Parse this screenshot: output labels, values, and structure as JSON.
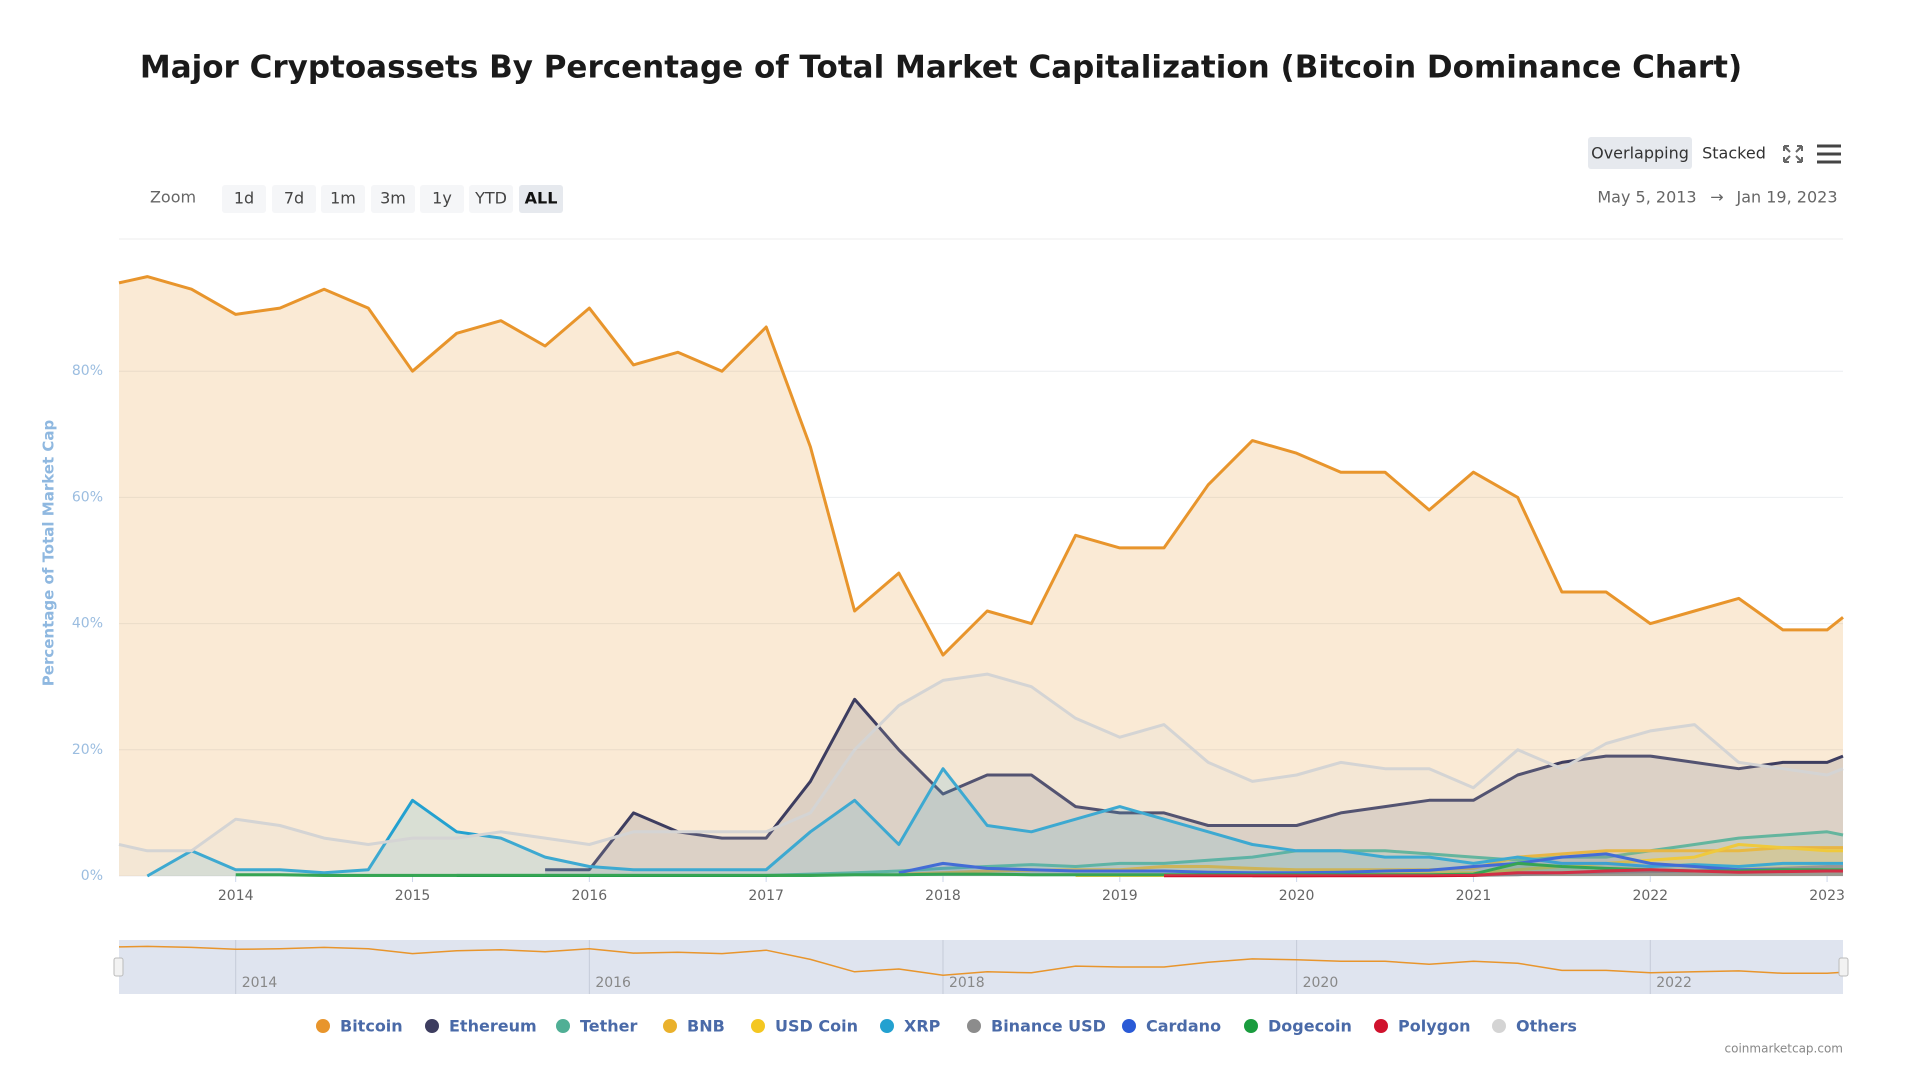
{
  "header": {
    "title": "Major Cryptoassets By Percentage of Total Market Capitalization (Bitcoin Dominance Chart)"
  },
  "toolbar": {
    "zoom_label": "Zoom",
    "zoom_buttons": [
      "1d",
      "7d",
      "1m",
      "3m",
      "1y",
      "YTD",
      "ALL"
    ],
    "active_zoom": "ALL",
    "modes": [
      "Overlapping",
      "Stacked"
    ],
    "active_mode": "Overlapping",
    "range_from": "May 5, 2013",
    "range_to": "Jan 19, 2023"
  },
  "chart_data": {
    "type": "area",
    "y_label": "Percentage of Total Market Cap",
    "x": [
      2013.34,
      2013.5,
      2013.75,
      2014.0,
      2014.25,
      2014.5,
      2014.75,
      2015.0,
      2015.25,
      2015.5,
      2015.75,
      2016.0,
      2016.25,
      2016.5,
      2016.75,
      2017.0,
      2017.25,
      2017.5,
      2017.75,
      2018.0,
      2018.25,
      2018.5,
      2018.75,
      2019.0,
      2019.25,
      2019.5,
      2019.75,
      2020.0,
      2020.25,
      2020.5,
      2020.75,
      2021.0,
      2021.25,
      2021.5,
      2021.75,
      2022.0,
      2022.25,
      2022.5,
      2022.75,
      2023.0,
      2023.09
    ],
    "xlim": [
      2013.34,
      2023.09
    ],
    "xticks": [
      2014,
      2015,
      2016,
      2017,
      2018,
      2019,
      2020,
      2021,
      2022,
      2023
    ],
    "ylim": [
      0,
      100
    ],
    "yticks": [
      {
        "value": 0,
        "label": "0%"
      },
      {
        "value": 20,
        "label": "20%"
      },
      {
        "value": 40,
        "label": "40%"
      },
      {
        "value": 60,
        "label": "60%"
      },
      {
        "value": 80,
        "label": "80%"
      }
    ],
    "grid": true,
    "navigator_xticks": [
      2014,
      2016,
      2018,
      2020,
      2022
    ],
    "series": [
      {
        "name": "Bitcoin",
        "color": "#e8952c",
        "values": [
          94,
          95,
          93,
          89,
          90,
          93,
          90,
          80,
          86,
          88,
          84,
          90,
          81,
          83,
          80,
          87,
          68,
          42,
          48,
          35,
          42,
          40,
          54,
          52,
          52,
          62,
          69,
          67,
          64,
          64,
          58,
          64,
          60,
          45,
          45,
          40,
          42,
          44,
          39,
          39,
          41
        ]
      },
      {
        "name": "Ethereum",
        "color": "#3d3d60",
        "values": [
          null,
          null,
          null,
          null,
          null,
          null,
          null,
          null,
          null,
          null,
          1,
          1,
          10,
          7,
          6,
          6,
          15,
          28,
          20,
          13,
          16,
          16,
          11,
          10,
          10,
          8,
          8,
          8,
          10,
          11,
          12,
          12,
          16,
          18,
          19,
          19,
          18,
          17,
          18,
          18,
          19
        ]
      },
      {
        "name": "Tether",
        "color": "#50af95",
        "values": [
          null,
          null,
          null,
          null,
          null,
          null,
          null,
          null,
          0.1,
          0.1,
          0.1,
          0.1,
          0.1,
          0.1,
          0.1,
          0.1,
          0.3,
          0.5,
          0.8,
          1.2,
          1.5,
          1.8,
          1.5,
          2,
          2,
          2.5,
          3,
          4,
          4,
          4,
          3.5,
          3,
          2.5,
          3,
          3,
          4,
          5,
          6,
          6.5,
          7,
          6.5
        ]
      },
      {
        "name": "BNB",
        "color": "#eab12c",
        "values": [
          null,
          null,
          null,
          null,
          null,
          null,
          null,
          null,
          null,
          null,
          null,
          null,
          null,
          null,
          null,
          null,
          null,
          null,
          0.3,
          0.5,
          0.8,
          0.9,
          1,
          1,
          1.5,
          1.5,
          1.2,
          1,
          1,
          1,
          1,
          1.2,
          3,
          3.5,
          4,
          4,
          4,
          4,
          4.5,
          4.5,
          4.5
        ]
      },
      {
        "name": "USD Coin",
        "color": "#f4c721",
        "values": [
          null,
          null,
          null,
          null,
          null,
          null,
          null,
          null,
          null,
          null,
          null,
          null,
          null,
          null,
          null,
          null,
          null,
          null,
          null,
          null,
          null,
          null,
          0.1,
          0.1,
          0.1,
          0.1,
          0.2,
          0.2,
          0.3,
          0.4,
          0.5,
          0.5,
          1,
          1.5,
          2,
          2.5,
          3,
          5,
          4.5,
          4,
          4
        ]
      },
      {
        "name": "XRP",
        "color": "#23a1d0",
        "values": [
          null,
          0,
          4,
          1,
          1,
          0.5,
          1,
          12,
          7,
          6,
          3,
          1.5,
          1,
          1,
          1,
          1,
          7,
          12,
          5,
          17,
          8,
          7,
          9,
          11,
          9,
          7,
          5,
          4,
          4,
          3,
          3,
          2,
          3,
          2,
          2,
          1.5,
          1.8,
          1.5,
          2,
          2,
          2
        ]
      },
      {
        "name": "Binance USD",
        "color": "#8c8c8c",
        "values": [
          null,
          null,
          null,
          null,
          null,
          null,
          null,
          null,
          null,
          null,
          null,
          null,
          null,
          null,
          null,
          null,
          null,
          null,
          null,
          null,
          null,
          null,
          null,
          null,
          null,
          null,
          0.05,
          0.05,
          0.1,
          0.1,
          0.1,
          0.1,
          0.2,
          0.5,
          0.6,
          0.7,
          0.8,
          1,
          1.2,
          1.5,
          1.5
        ]
      },
      {
        "name": "Cardano",
        "color": "#2a5ad6",
        "values": [
          null,
          null,
          null,
          null,
          null,
          null,
          null,
          null,
          null,
          null,
          null,
          null,
          null,
          null,
          null,
          null,
          null,
          null,
          0.5,
          2,
          1.2,
          1,
          0.8,
          0.8,
          0.8,
          0.6,
          0.5,
          0.5,
          0.6,
          0.8,
          0.9,
          1.5,
          2,
          3,
          3.5,
          2,
          1.5,
          1,
          1,
          0.8,
          0.9
        ]
      },
      {
        "name": "Dogecoin",
        "color": "#1a9c3e",
        "values": [
          null,
          null,
          null,
          0.2,
          0.2,
          0.1,
          0.1,
          0.1,
          0.1,
          0.1,
          0.1,
          0.1,
          0.1,
          0.1,
          0.1,
          0.1,
          0.1,
          0.2,
          0.2,
          0.3,
          0.3,
          0.2,
          0.2,
          0.2,
          0.2,
          0.2,
          0.2,
          0.2,
          0.2,
          0.2,
          0.2,
          0.3,
          2,
          1.5,
          1.2,
          1,
          0.8,
          0.8,
          1,
          1,
          1
        ]
      },
      {
        "name": "Polygon",
        "color": "#d0122d",
        "values": [
          null,
          null,
          null,
          null,
          null,
          null,
          null,
          null,
          null,
          null,
          null,
          null,
          null,
          null,
          null,
          null,
          null,
          null,
          null,
          null,
          null,
          null,
          null,
          null,
          0.05,
          0.05,
          0.05,
          0.05,
          0.05,
          0.05,
          0.05,
          0.1,
          0.5,
          0.5,
          0.8,
          1,
          0.8,
          0.6,
          0.7,
          0.8,
          0.8
        ]
      },
      {
        "name": "Others",
        "color": "#d4d4d4",
        "values": [
          5,
          4,
          4,
          9,
          8,
          6,
          5,
          6,
          6,
          7,
          6,
          5,
          7,
          7,
          7,
          7,
          10,
          20,
          27,
          31,
          32,
          30,
          25,
          22,
          24,
          18,
          15,
          16,
          18,
          17,
          17,
          14,
          20,
          17,
          21,
          23,
          24,
          18,
          17,
          16,
          17
        ]
      }
    ]
  },
  "footer": {
    "credit": "coinmarketcap.com"
  }
}
